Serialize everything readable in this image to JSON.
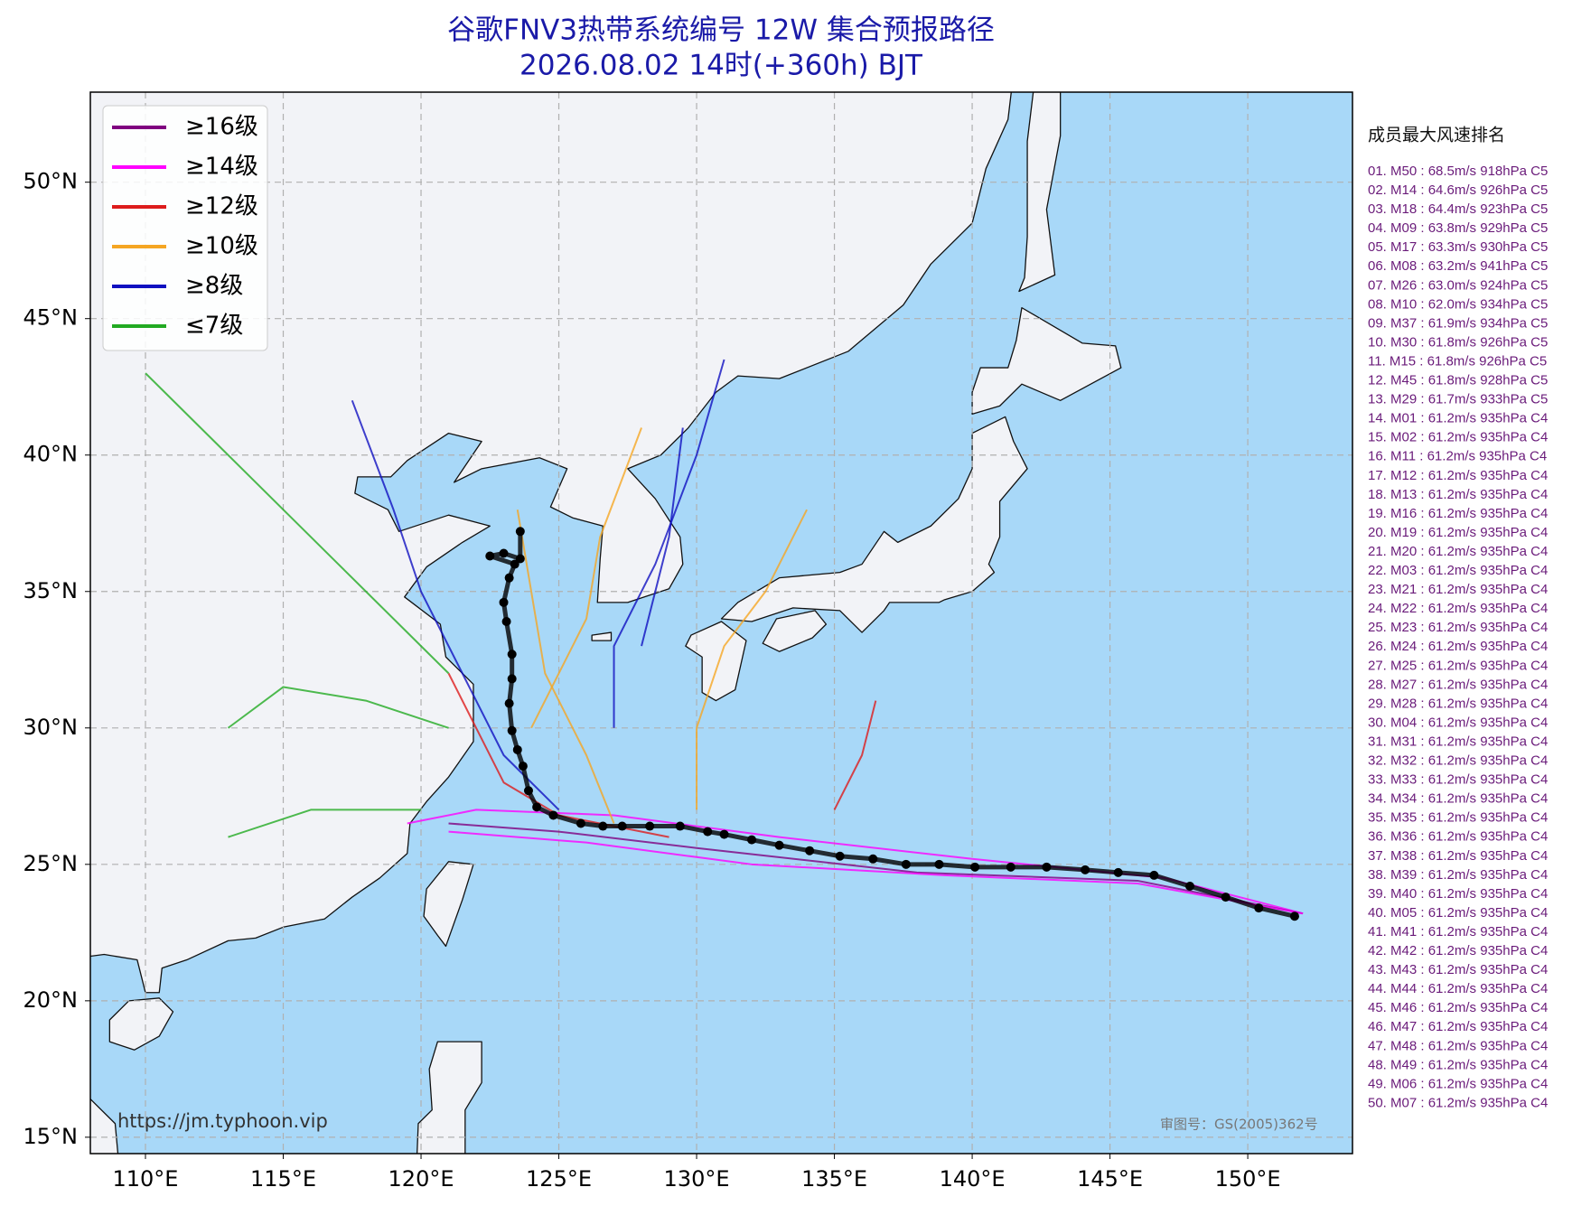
{
  "title": "谷歌FNV3热带系统编号 12W 集合预报路径",
  "subtitle": "2026.08.02 14时(+360h) BJT",
  "map": {
    "lonlim": [
      108.0,
      153.8
    ],
    "latlim": [
      14.4,
      53.3
    ],
    "lon_ticks": [
      {
        "value": 110,
        "label": "110°E"
      },
      {
        "value": 115,
        "label": "115°E"
      },
      {
        "value": 120,
        "label": "120°E"
      },
      {
        "value": 125,
        "label": "125°E"
      },
      {
        "value": 130,
        "label": "130°E"
      },
      {
        "value": 135,
        "label": "135°E"
      },
      {
        "value": 140,
        "label": "140°E"
      },
      {
        "value": 145,
        "label": "145°E"
      },
      {
        "value": 150,
        "label": "150°E"
      }
    ],
    "lat_ticks": [
      {
        "value": 15,
        "label": "15°N"
      },
      {
        "value": 20,
        "label": "20°N"
      },
      {
        "value": 25,
        "label": "25°N"
      },
      {
        "value": 30,
        "label": "30°N"
      },
      {
        "value": 35,
        "label": "35°N"
      },
      {
        "value": 40,
        "label": "40°N"
      },
      {
        "value": 45,
        "label": "45°N"
      },
      {
        "value": 50,
        "label": "50°N"
      }
    ],
    "grid": true
  },
  "legend": [
    {
      "label": "≥16级",
      "color": "#800080"
    },
    {
      "label": "≥14级",
      "color": "#ff00ff"
    },
    {
      "label": "≥12级",
      "color": "#dd1c1c"
    },
    {
      "label": "≥10级",
      "color": "#f5a623"
    },
    {
      "label": "≥8级",
      "color": "#1010c0"
    },
    {
      "label": "≤7级",
      "color": "#22aa22"
    }
  ],
  "tracks": [
    {
      "color": "#ff00ff",
      "lon": [
        152,
        147,
        140,
        133,
        127,
        122,
        119.5
      ],
      "lat": [
        23.2,
        24.5,
        25.2,
        26,
        26.8,
        27,
        26.5
      ]
    },
    {
      "color": "#800080",
      "lon": [
        152,
        146,
        138,
        130,
        125,
        121
      ],
      "lat": [
        23.2,
        24.4,
        24.7,
        25.6,
        26.2,
        26.5
      ]
    },
    {
      "color": "#ff00ff",
      "lon": [
        152,
        146,
        139,
        132,
        126,
        121
      ],
      "lat": [
        23.2,
        24.3,
        24.6,
        25,
        25.8,
        26.2
      ]
    },
    {
      "color": "#dd1c1c",
      "lon": [
        129,
        125,
        123,
        122,
        121
      ],
      "lat": [
        26,
        26.8,
        28,
        30,
        32
      ]
    },
    {
      "color": "#f5a623",
      "lon": [
        127,
        126,
        124.5,
        124,
        123.5
      ],
      "lat": [
        26.5,
        29,
        32,
        35,
        38
      ]
    },
    {
      "color": "#1010c0",
      "lon": [
        125,
        123,
        121.5,
        120,
        119,
        117.5
      ],
      "lat": [
        27,
        29,
        32,
        35,
        38,
        42
      ]
    },
    {
      "color": "#22aa22",
      "lon": [
        121,
        118,
        115,
        113
      ],
      "lat": [
        30,
        31,
        31.5,
        30
      ]
    },
    {
      "color": "#f5a623",
      "lon": [
        130,
        130,
        131,
        132.5,
        134
      ],
      "lat": [
        27,
        30,
        33,
        35,
        38
      ]
    },
    {
      "color": "#1010c0",
      "lon": [
        127,
        127,
        128.5,
        130,
        131
      ],
      "lat": [
        30,
        33,
        36,
        40,
        43.5
      ]
    },
    {
      "color": "#22aa22",
      "lon": [
        121,
        117,
        113,
        110
      ],
      "lat": [
        32,
        36,
        40,
        43
      ]
    },
    {
      "color": "#dd1c1c",
      "lon": [
        135,
        136,
        136.5
      ],
      "lat": [
        27,
        29,
        31
      ]
    },
    {
      "color": "#1010c0",
      "lon": [
        128,
        129,
        129.5
      ],
      "lat": [
        33,
        37,
        41
      ]
    },
    {
      "color": "#22aa22",
      "lon": [
        120,
        116,
        113
      ],
      "lat": [
        27,
        27,
        26
      ]
    },
    {
      "color": "#f5a623",
      "lon": [
        124,
        126,
        126.5,
        128
      ],
      "lat": [
        30,
        34,
        37,
        41
      ]
    }
  ],
  "mean_track": {
    "color": "#000000",
    "lon": [
      151.7,
      150.4,
      149.2,
      147.9,
      146.6,
      145.3,
      144.1,
      142.7,
      141.4,
      140.1,
      138.8,
      137.6,
      136.4,
      135.2,
      134.1,
      133.0,
      132.0,
      131.0,
      130.4,
      129.4,
      128.3,
      127.3,
      126.6,
      125.8,
      124.8,
      124.2,
      123.9,
      123.7,
      123.5,
      123.3,
      123.2,
      123.3,
      123.3,
      123.1,
      123.0,
      123.2,
      123.4,
      122.5,
      123.0,
      123.6,
      123.6
    ],
    "lat": [
      23.1,
      23.4,
      23.8,
      24.2,
      24.6,
      24.7,
      24.8,
      24.9,
      24.9,
      24.9,
      25.0,
      25.0,
      25.2,
      25.3,
      25.5,
      25.7,
      25.9,
      26.1,
      26.2,
      26.4,
      26.4,
      26.4,
      26.4,
      26.5,
      26.8,
      27.1,
      27.7,
      28.6,
      29.2,
      29.9,
      30.9,
      31.8,
      32.7,
      33.9,
      34.6,
      35.5,
      36.0,
      36.3,
      36.4,
      36.2,
      37.2
    ]
  },
  "ranking": {
    "title": "成员最大风速排名",
    "items": [
      "01. M50 : 68.5m/s 918hPa C5",
      "02. M14 : 64.6m/s 926hPa C5",
      "03. M18 : 64.4m/s 923hPa C5",
      "04. M09 : 63.8m/s 929hPa C5",
      "05. M17 : 63.3m/s 930hPa C5",
      "06. M08 : 63.2m/s 941hPa C5",
      "07. M26 : 63.0m/s 924hPa C5",
      "08. M10 : 62.0m/s 934hPa C5",
      "09. M37 : 61.9m/s 934hPa C5",
      "10. M30 : 61.8m/s 926hPa C5",
      "11. M15 : 61.8m/s 926hPa C5",
      "12. M45 : 61.8m/s 928hPa C5",
      "13. M29 : 61.7m/s 933hPa C5",
      "14. M01 : 61.2m/s 935hPa C4",
      "15. M02 : 61.2m/s 935hPa C4",
      "16. M11 : 61.2m/s 935hPa C4",
      "17. M12 : 61.2m/s 935hPa C4",
      "18. M13 : 61.2m/s 935hPa C4",
      "19. M16 : 61.2m/s 935hPa C4",
      "20. M19 : 61.2m/s 935hPa C4",
      "21. M20 : 61.2m/s 935hPa C4",
      "22. M03 : 61.2m/s 935hPa C4",
      "23. M21 : 61.2m/s 935hPa C4",
      "24. M22 : 61.2m/s 935hPa C4",
      "25. M23 : 61.2m/s 935hPa C4",
      "26. M24 : 61.2m/s 935hPa C4",
      "27. M25 : 61.2m/s 935hPa C4",
      "28. M27 : 61.2m/s 935hPa C4",
      "29. M28 : 61.2m/s 935hPa C4",
      "30. M04 : 61.2m/s 935hPa C4",
      "31. M31 : 61.2m/s 935hPa C4",
      "32. M32 : 61.2m/s 935hPa C4",
      "33. M33 : 61.2m/s 935hPa C4",
      "34. M34 : 61.2m/s 935hPa C4",
      "35. M35 : 61.2m/s 935hPa C4",
      "36. M36 : 61.2m/s 935hPa C4",
      "37. M38 : 61.2m/s 935hPa C4",
      "38. M39 : 61.2m/s 935hPa C4",
      "39. M40 : 61.2m/s 935hPa C4",
      "40. M05 : 61.2m/s 935hPa C4",
      "41. M41 : 61.2m/s 935hPa C4",
      "42. M42 : 61.2m/s 935hPa C4",
      "43. M43 : 61.2m/s 935hPa C4",
      "44. M44 : 61.2m/s 935hPa C4",
      "45. M46 : 61.2m/s 935hPa C4",
      "46. M47 : 61.2m/s 935hPa C4",
      "47. M48 : 61.2m/s 935hPa C4",
      "48. M49 : 61.2m/s 935hPa C4",
      "49. M06 : 61.2m/s 935hPa C4",
      "50. M07 : 61.2m/s 935hPa C4"
    ]
  },
  "source": "https://jm.typhoon.vip",
  "approval": "审图号：GS(2005)362号"
}
